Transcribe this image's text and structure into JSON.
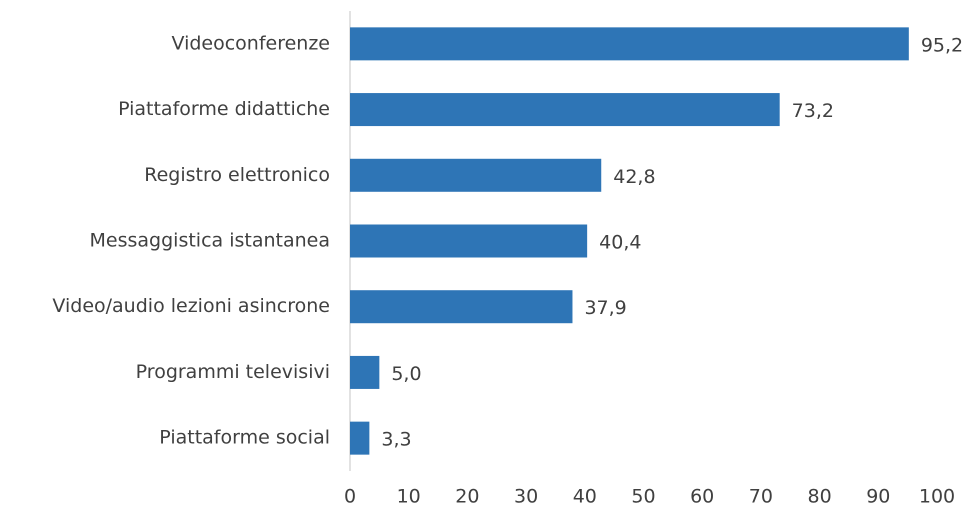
{
  "chart_data": {
    "type": "bar",
    "orientation": "horizontal",
    "categories": [
      "Videoconferenze",
      "Piattaforme didattiche",
      "Registro elettronico",
      "Messaggistica istantanea",
      "Video/audio lezioni asincrone",
      "Programmi televisivi",
      "Piattaforme social"
    ],
    "values": [
      95.2,
      73.2,
      42.8,
      40.4,
      37.9,
      5.0,
      3.3
    ],
    "value_labels": [
      "95,2",
      "73,2",
      "42,8",
      "40,4",
      "37,9",
      "5,0",
      "3,3"
    ],
    "color": "#2e75b6",
    "xlim": [
      0,
      100
    ],
    "xticks": [
      0,
      10,
      20,
      30,
      40,
      50,
      60,
      70,
      80,
      90,
      100
    ],
    "grid": false
  }
}
